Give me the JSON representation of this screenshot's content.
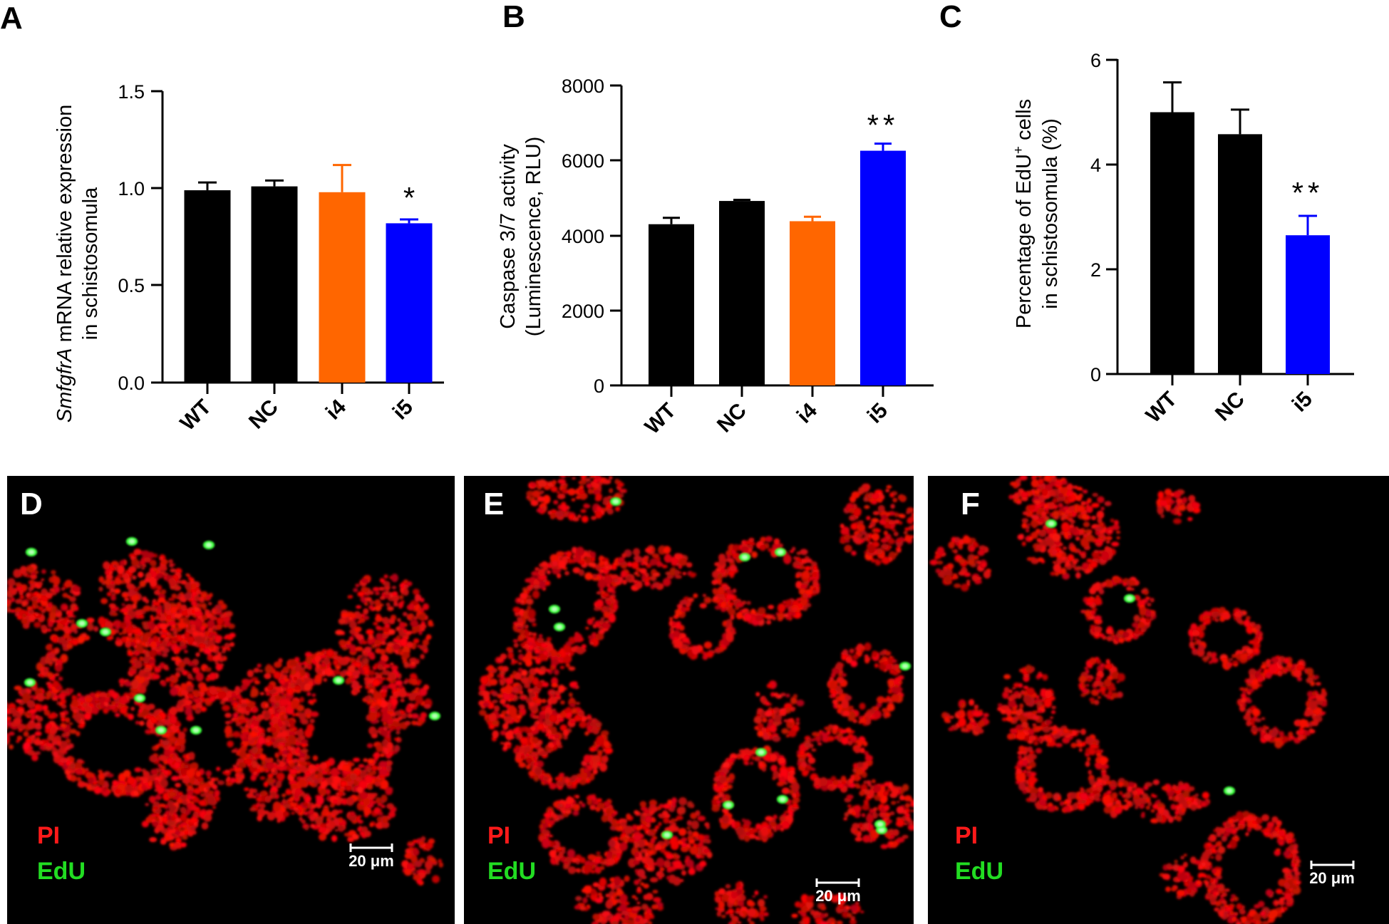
{
  "chart_data": [
    {
      "panel": "A",
      "type": "bar",
      "ylabel_italic": "SmfgfrA",
      "ylabel_line1_rest": " mRNA relative expression",
      "ylabel_line2": "in schistosomula",
      "ylim": [
        0,
        1.5
      ],
      "yticks": [
        "0.0",
        "0.5",
        "1.0",
        "1.5"
      ],
      "ytick_values": [
        0,
        0.5,
        1.0,
        1.5
      ],
      "categories": [
        "WT",
        "NC",
        "i4",
        "i5"
      ],
      "values": [
        0.99,
        1.01,
        0.98,
        0.82
      ],
      "errors": [
        0.04,
        0.03,
        0.14,
        0.02
      ],
      "colors": [
        "#000000",
        "#000000",
        "#ff6600",
        "#0000ff"
      ],
      "significance": [
        "",
        "",
        "",
        "*"
      ]
    },
    {
      "panel": "B",
      "type": "bar",
      "ylabel_line1": "Caspase 3/7 activity",
      "ylabel_line2": "(Luminescence, RLU)",
      "ylim": [
        0,
        8000
      ],
      "yticks": [
        "0",
        "2000",
        "4000",
        "6000",
        "8000"
      ],
      "ytick_values": [
        0,
        2000,
        4000,
        6000,
        8000
      ],
      "categories": [
        "WT",
        "NC",
        "i4",
        "i5"
      ],
      "values": [
        4300,
        4920,
        4380,
        6260
      ],
      "errors": [
        170,
        30,
        120,
        190
      ],
      "colors": [
        "#000000",
        "#000000",
        "#ff6600",
        "#0000ff"
      ],
      "significance": [
        "",
        "",
        "",
        "**"
      ]
    },
    {
      "panel": "C",
      "type": "bar",
      "ylabel_line1": "Percentage of EdU",
      "ylabel_sup": "+",
      "ylabel_line1_rest": " cells",
      "ylabel_line2": "in schistosomula (%)",
      "ylim": [
        0,
        6
      ],
      "yticks": [
        "0",
        "2",
        "4",
        "6"
      ],
      "ytick_values": [
        0,
        2,
        4,
        6
      ],
      "categories": [
        "WT",
        "NC",
        "i5"
      ],
      "values": [
        5.0,
        4.58,
        2.65
      ],
      "errors": [
        0.57,
        0.47,
        0.37
      ],
      "colors": [
        "#000000",
        "#000000",
        "#0000ff"
      ],
      "significance": [
        "",
        "",
        "**"
      ]
    }
  ],
  "micrographs": [
    {
      "panel": "D",
      "stain1": "PI",
      "stain2": "EdU",
      "scale_bar": "20 μm"
    },
    {
      "panel": "E",
      "stain1": "PI",
      "stain2": "EdU",
      "scale_bar": "20 μm"
    },
    {
      "panel": "F",
      "stain1": "PI",
      "stain2": "EdU",
      "scale_bar": "20 μm"
    }
  ]
}
